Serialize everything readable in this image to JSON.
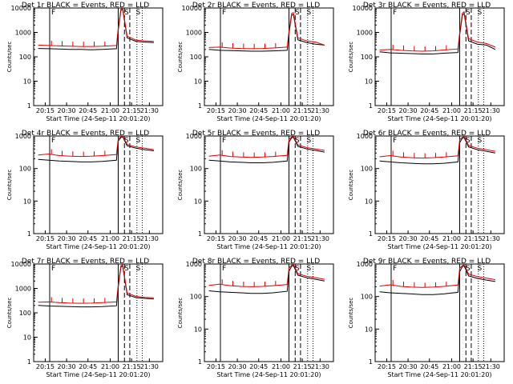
{
  "chart_data": [
    {
      "type": "line",
      "title": "Det 1r  BLACK = Events, RED = LLD",
      "xlabel": "Start Time (24-Sep-11 20:01:20)",
      "ylabel": "Counts/sec",
      "x_ticks": [
        "20:15",
        "20:30",
        "20:45",
        "21:00",
        "21:15",
        "21:30"
      ],
      "y_ticks": [
        "1",
        "10",
        "100",
        "1000",
        "10000"
      ],
      "yscale": "log",
      "ylim": [
        1,
        10000
      ],
      "markers": [
        "F",
        "S",
        "S"
      ],
      "series": [
        {
          "name": "Events",
          "color": "#000000",
          "values": [
            220,
            215,
            210,
            200,
            200,
            195,
            200,
            215,
            1200,
            8000,
            9000,
            600,
            430,
            400,
            380
          ]
        },
        {
          "name": "LLD",
          "color": "#e00000",
          "values": [
            300,
            290,
            280,
            270,
            265,
            265,
            270,
            290,
            1500,
            9000,
            10000,
            700,
            480,
            450,
            430
          ]
        }
      ]
    },
    {
      "type": "line",
      "title": "Det 2r  BLACK = Events, RED = LLD",
      "xlabel": "Start Time (24-Sep-11 20:01:20)",
      "ylabel": "Counts/sec",
      "x_ticks": [
        "20:15",
        "20:30",
        "20:45",
        "21:00",
        "21:15",
        "21:30"
      ],
      "y_ticks": [
        "1",
        "10",
        "100",
        "1000",
        "10000"
      ],
      "yscale": "log",
      "ylim": [
        1,
        10000
      ],
      "markers": [
        "F",
        "S",
        "S"
      ],
      "series": [
        {
          "name": "Events",
          "color": "#000000",
          "values": [
            200,
            185,
            180,
            175,
            170,
            170,
            175,
            185,
            900,
            5000,
            5500,
            500,
            380,
            330,
            300
          ]
        },
        {
          "name": "LLD",
          "color": "#e00000",
          "values": [
            240,
            250,
            230,
            220,
            215,
            220,
            230,
            250,
            1100,
            6000,
            6500,
            600,
            450,
            400,
            300
          ]
        }
      ]
    },
    {
      "type": "line",
      "title": "Det 3r  BLACK = Events, RED = LLD",
      "xlabel": "Start Time (24-Sep-11 20:01:20)",
      "ylabel": "Counts/sec",
      "x_ticks": [
        "20:15",
        "20:30",
        "20:45",
        "21:00",
        "21:15",
        "21:30"
      ],
      "y_ticks": [
        "1",
        "10",
        "100",
        "1000",
        "10000"
      ],
      "yscale": "log",
      "ylim": [
        1,
        10000
      ],
      "markers": [
        "F",
        "S",
        "S"
      ],
      "series": [
        {
          "name": "Events",
          "color": "#000000",
          "values": [
            160,
            145,
            140,
            135,
            130,
            130,
            140,
            150,
            800,
            5000,
            6000,
            450,
            330,
            300,
            200
          ]
        },
        {
          "name": "LLD",
          "color": "#e00000",
          "values": [
            190,
            200,
            185,
            175,
            170,
            175,
            190,
            210,
            1000,
            6000,
            7000,
            550,
            400,
            350,
            250
          ]
        }
      ]
    },
    {
      "type": "line",
      "title": "Det 4r  BLACK = Events, RED = LLD",
      "xlabel": "Start Time (24-Sep-11 20:01:20)",
      "ylabel": "Counts/sec",
      "x_ticks": [
        "20:15",
        "20:30",
        "20:45",
        "21:00",
        "21:15",
        "21:30"
      ],
      "y_ticks": [
        "1",
        "10",
        "100",
        "1000"
      ],
      "yscale": "log",
      "ylim": [
        1,
        1000
      ],
      "markers": [
        "F",
        "S",
        "S"
      ],
      "series": [
        {
          "name": "Events",
          "color": "#000000",
          "values": [
            190,
            180,
            170,
            165,
            160,
            160,
            165,
            180,
            700,
            900,
            950,
            500,
            420,
            380,
            350
          ]
        },
        {
          "name": "LLD",
          "color": "#e00000",
          "values": [
            260,
            280,
            250,
            240,
            235,
            240,
            250,
            270,
            800,
            950,
            1000,
            550,
            460,
            420,
            380
          ]
        }
      ]
    },
    {
      "type": "line",
      "title": "Det 5r  BLACK = Events, RED = LLD",
      "xlabel": "Start Time (24-Sep-11 20:01:20)",
      "ylabel": "Counts/sec",
      "x_ticks": [
        "20:15",
        "20:30",
        "20:45",
        "21:00",
        "21:15",
        "21:30"
      ],
      "y_ticks": [
        "1",
        "10",
        "100",
        "1000"
      ],
      "yscale": "log",
      "ylim": [
        1,
        1000
      ],
      "markers": [
        "F",
        "S",
        "S"
      ],
      "series": [
        {
          "name": "Events",
          "color": "#000000",
          "values": [
            180,
            170,
            160,
            155,
            150,
            150,
            155,
            170,
            650,
            880,
            920,
            480,
            400,
            360,
            320
          ]
        },
        {
          "name": "LLD",
          "color": "#e00000",
          "values": [
            240,
            260,
            235,
            225,
            220,
            225,
            235,
            255,
            780,
            930,
            980,
            530,
            440,
            400,
            360
          ]
        }
      ]
    },
    {
      "type": "line",
      "title": "Det 6r  BLACK = Events, RED = LLD",
      "xlabel": "Start Time (24-Sep-11 20:01:20)",
      "ylabel": "Counts/sec",
      "x_ticks": [
        "20:15",
        "20:30",
        "20:45",
        "21:00",
        "21:15",
        "21:30"
      ],
      "y_ticks": [
        "1",
        "10",
        "100",
        "1000"
      ],
      "yscale": "log",
      "ylim": [
        1,
        1000
      ],
      "markers": [
        "F",
        "S",
        "S"
      ],
      "series": [
        {
          "name": "Events",
          "color": "#000000",
          "values": [
            170,
            160,
            150,
            145,
            140,
            140,
            145,
            160,
            620,
            860,
            900,
            460,
            380,
            340,
            300
          ]
        },
        {
          "name": "LLD",
          "color": "#e00000",
          "values": [
            230,
            250,
            225,
            215,
            210,
            215,
            225,
            245,
            760,
            920,
            970,
            510,
            420,
            380,
            340
          ]
        }
      ]
    },
    {
      "type": "line",
      "title": "Det 7r  BLACK = Events, RED = LLD",
      "xlabel": "Start Time (24-Sep-11 20:01:20)",
      "ylabel": "Counts/sec",
      "x_ticks": [
        "20:15",
        "20:30",
        "20:45",
        "21:00",
        "21:15",
        "21:30"
      ],
      "y_ticks": [
        "1",
        "10",
        "100",
        "1000",
        "10000"
      ],
      "yscale": "log",
      "ylim": [
        1,
        10000
      ],
      "markers": [
        "F",
        "S",
        "S"
      ],
      "series": [
        {
          "name": "Events",
          "color": "#000000",
          "values": [
            200,
            190,
            185,
            180,
            175,
            175,
            180,
            195,
            1100,
            7500,
            8500,
            550,
            420,
            390,
            370
          ]
        },
        {
          "name": "LLD",
          "color": "#e00000",
          "values": [
            270,
            280,
            260,
            250,
            245,
            250,
            260,
            280,
            1400,
            8500,
            9500,
            650,
            470,
            430,
            410
          ]
        }
      ]
    },
    {
      "type": "line",
      "title": "Det 8r  BLACK = Events, RED = LLD",
      "xlabel": "Start Time (24-Sep-11 20:01:20)",
      "ylabel": "Counts/sec",
      "x_ticks": [
        "20:15",
        "20:30",
        "20:45",
        "21:00",
        "21:15",
        "21:30"
      ],
      "y_ticks": [
        "1",
        "10",
        "100",
        "1000"
      ],
      "yscale": "log",
      "ylim": [
        1,
        1000
      ],
      "markers": [
        "F",
        "S",
        "S"
      ],
      "series": [
        {
          "name": "Events",
          "color": "#000000",
          "values": [
            150,
            140,
            135,
            130,
            125,
            125,
            130,
            145,
            600,
            850,
            900,
            450,
            380,
            340,
            300
          ]
        },
        {
          "name": "LLD",
          "color": "#e00000",
          "values": [
            220,
            240,
            215,
            205,
            200,
            205,
            215,
            235,
            750,
            920,
            970,
            500,
            420,
            380,
            340
          ]
        }
      ]
    },
    {
      "type": "line",
      "title": "Det 9r  BLACK = Events, RED = LLD",
      "xlabel": "Start Time (24-Sep-11 20:01:20)",
      "ylabel": "Counts/sec",
      "x_ticks": [
        "20:15",
        "20:30",
        "20:45",
        "21:00",
        "21:15",
        "21:30"
      ],
      "y_ticks": [
        "1",
        "10",
        "100",
        "1000"
      ],
      "yscale": "log",
      "ylim": [
        1,
        1000
      ],
      "markers": [
        "F",
        "S",
        "S"
      ],
      "series": [
        {
          "name": "Events",
          "color": "#000000",
          "values": [
            140,
            130,
            125,
            120,
            115,
            115,
            120,
            135,
            580,
            830,
            880,
            430,
            360,
            320,
            290
          ]
        },
        {
          "name": "LLD",
          "color": "#e00000",
          "values": [
            210,
            230,
            205,
            195,
            190,
            195,
            205,
            225,
            730,
            900,
            950,
            490,
            410,
            370,
            330
          ]
        }
      ]
    }
  ]
}
